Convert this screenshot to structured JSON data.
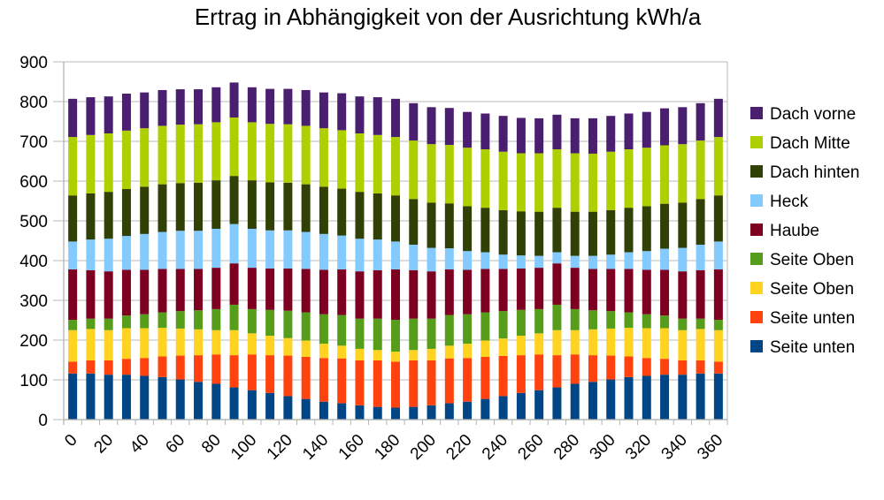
{
  "chart_data": {
    "type": "bar",
    "stacked": true,
    "title": "Ertrag in Abhängigkeit von der Ausrichtung kWh/a",
    "xlabel": "",
    "ylabel": "",
    "ylim": [
      0,
      900
    ],
    "yticks": [
      0,
      100,
      200,
      300,
      400,
      500,
      600,
      700,
      800,
      900
    ],
    "xtick_labels": [
      "0",
      "20",
      "40",
      "60",
      "80",
      "100",
      "120",
      "140",
      "160",
      "180",
      "200",
      "220",
      "240",
      "260",
      "280",
      "300",
      "320",
      "340",
      "360"
    ],
    "grid": true,
    "legend_position": "right",
    "categories": [
      0,
      10,
      20,
      30,
      40,
      50,
      60,
      70,
      80,
      90,
      100,
      110,
      120,
      130,
      140,
      150,
      160,
      170,
      180,
      190,
      200,
      210,
      220,
      230,
      240,
      250,
      260,
      270,
      280,
      290,
      300,
      310,
      320,
      330,
      340,
      350,
      360
    ],
    "series": [
      {
        "name": "Seite unten",
        "color": "#004586",
        "values": [
          116,
          116,
          113,
          113,
          110,
          107,
          101,
          95,
          90,
          81,
          74,
          67,
          59,
          52,
          45,
          41,
          36,
          32,
          30,
          32,
          36,
          41,
          45,
          52,
          59,
          67,
          74,
          81,
          90,
          95,
          101,
          107,
          110,
          113,
          113,
          116,
          116
        ]
      },
      {
        "name": "Seite unten",
        "color": "#ff420e",
        "values": [
          30,
          33,
          36,
          40,
          45,
          52,
          60,
          67,
          74,
          81,
          90,
          95,
          102,
          106,
          110,
          113,
          113,
          117,
          116,
          117,
          113,
          113,
          110,
          106,
          101,
          95,
          90,
          81,
          74,
          67,
          60,
          52,
          45,
          40,
          36,
          33,
          30
        ]
      },
      {
        "name": "Seite Oben",
        "color": "#ffd320",
        "values": [
          79,
          79,
          76,
          77,
          75,
          72,
          68,
          65,
          61,
          63,
          53,
          49,
          44,
          41,
          36,
          32,
          29,
          26,
          25,
          26,
          29,
          32,
          36,
          41,
          44,
          49,
          53,
          63,
          61,
          65,
          68,
          72,
          75,
          77,
          76,
          79,
          79
        ]
      },
      {
        "name": "Seite Oben",
        "color": "#579d1c",
        "values": [
          26,
          26,
          29,
          32,
          35,
          39,
          44,
          48,
          53,
          64,
          61,
          65,
          69,
          71,
          74,
          77,
          76,
          79,
          80,
          79,
          76,
          77,
          74,
          71,
          69,
          65,
          61,
          64,
          53,
          48,
          44,
          39,
          35,
          32,
          29,
          26,
          26
        ]
      },
      {
        "name": "Haube",
        "color": "#7e0021",
        "values": [
          127,
          122,
          119,
          115,
          112,
          109,
          106,
          104,
          104,
          104,
          104,
          104,
          106,
          109,
          112,
          115,
          119,
          122,
          127,
          122,
          119,
          115,
          112,
          109,
          106,
          104,
          104,
          104,
          104,
          104,
          106,
          109,
          112,
          115,
          119,
          122,
          127
        ]
      },
      {
        "name": "Heck",
        "color": "#83caff",
        "values": [
          70,
          77,
          82,
          85,
          90,
          93,
          96,
          96,
          98,
          99,
          98,
          96,
          96,
          93,
          90,
          85,
          82,
          77,
          70,
          64,
          59,
          53,
          47,
          42,
          36,
          33,
          30,
          28,
          30,
          33,
          36,
          42,
          47,
          53,
          59,
          64,
          70
        ]
      },
      {
        "name": "Dach hinten",
        "color": "#314004",
        "values": [
          116,
          116,
          118,
          118,
          119,
          120,
          120,
          121,
          122,
          121,
          122,
          121,
          120,
          120,
          119,
          118,
          118,
          116,
          116,
          115,
          114,
          113,
          113,
          112,
          112,
          111,
          111,
          112,
          111,
          111,
          112,
          112,
          113,
          113,
          114,
          115,
          116
        ]
      },
      {
        "name": "Dach Mitte",
        "color": "#aecf00",
        "values": [
          147,
          147,
          147,
          147,
          147,
          147,
          147,
          147,
          146,
          147,
          146,
          147,
          147,
          147,
          147,
          147,
          147,
          147,
          147,
          147,
          147,
          147,
          147,
          147,
          147,
          146,
          147,
          147,
          147,
          146,
          147,
          147,
          147,
          147,
          147,
          147,
          147
        ]
      },
      {
        "name": "Dach vorne",
        "color": "#4b1f6f",
        "values": [
          96,
          95,
          93,
          93,
          90,
          90,
          89,
          88,
          88,
          88,
          88,
          88,
          89,
          90,
          90,
          93,
          93,
          95,
          96,
          94,
          93,
          93,
          90,
          90,
          90,
          89,
          88,
          87,
          88,
          89,
          90,
          90,
          90,
          93,
          93,
          94,
          96
        ]
      }
    ]
  }
}
